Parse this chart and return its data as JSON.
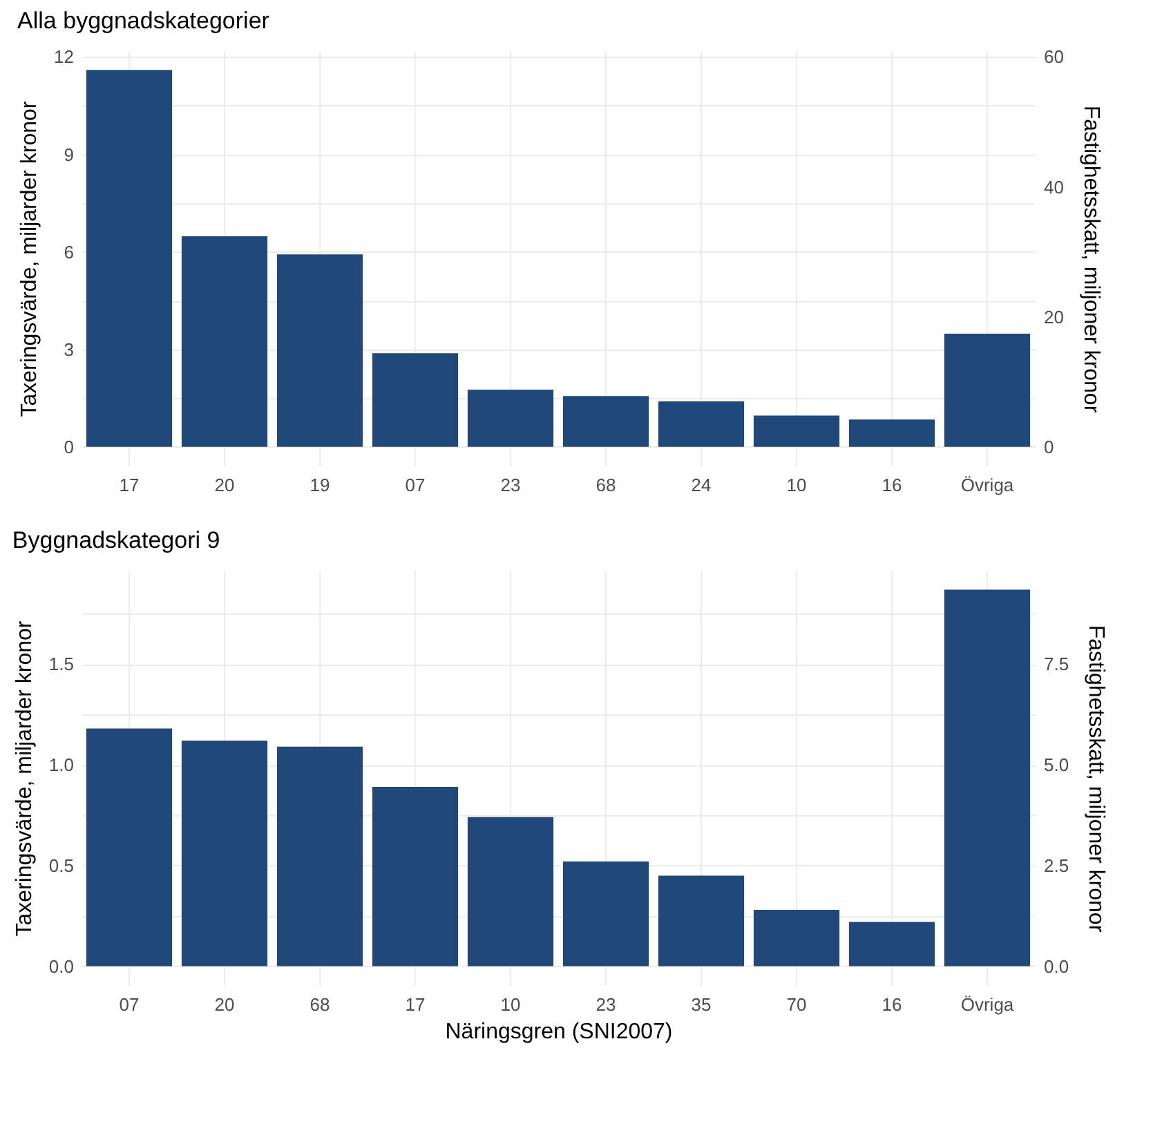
{
  "chart_data": [
    {
      "type": "bar",
      "title": "Alla byggnadskategorier",
      "ylabel": "Taxeringsvärde, miljarder kronor",
      "y2label": "Fastighetsskatt, miljoner kronor",
      "categories": [
        "17",
        "20",
        "19",
        "07",
        "23",
        "68",
        "24",
        "10",
        "16",
        "Övriga"
      ],
      "values": [
        11.6,
        6.48,
        5.92,
        2.88,
        1.76,
        1.56,
        1.4,
        0.96,
        0.84,
        3.48
      ],
      "color": "#20497a",
      "ylim": [
        -0.58,
        12.18
      ],
      "yticks": [
        0,
        {
          "value": 1.5,
          "label": null
        },
        3,
        {
          "value": 4.5,
          "label": null
        },
        6,
        {
          "value": 7.5,
          "label": null
        },
        9,
        {
          "value": 10.5,
          "label": null
        },
        12
      ],
      "y2lim": [
        -2.9,
        60.9
      ],
      "y2ticks": [
        0,
        20,
        40,
        60
      ],
      "grid": true
    },
    {
      "type": "bar",
      "title": "Byggnadskategori 9",
      "xlabel": "Näringsgren (SNI2007)",
      "ylabel": "Taxeringsvärde, miljarder kronor",
      "y2label": "Fastighetsskatt, miljoner kronor",
      "categories": [
        "07",
        "20",
        "68",
        "17",
        "10",
        "23",
        "35",
        "70",
        "16",
        "Övriga"
      ],
      "values": [
        1.18,
        1.12,
        1.09,
        0.89,
        0.74,
        0.52,
        0.45,
        0.28,
        0.22,
        1.87
      ],
      "color": "#20497a",
      "ylim": [
        -0.094,
        1.964
      ],
      "yticks": [
        {
          "value": 0,
          "label": "0.0"
        },
        {
          "value": 0.25,
          "label": null
        },
        0.5,
        {
          "value": 0.75,
          "label": null
        },
        {
          "value": 1,
          "label": "1.0"
        },
        {
          "value": 1.25,
          "label": null
        },
        1.5,
        {
          "value": 1.75,
          "label": null
        }
      ],
      "y2lim": [
        -0.47,
        9.82
      ],
      "y2ticks": [
        {
          "value": 0,
          "label": "0.0"
        },
        2.5,
        {
          "value": 5,
          "label": "5.0"
        },
        7.5
      ],
      "grid": true
    }
  ]
}
